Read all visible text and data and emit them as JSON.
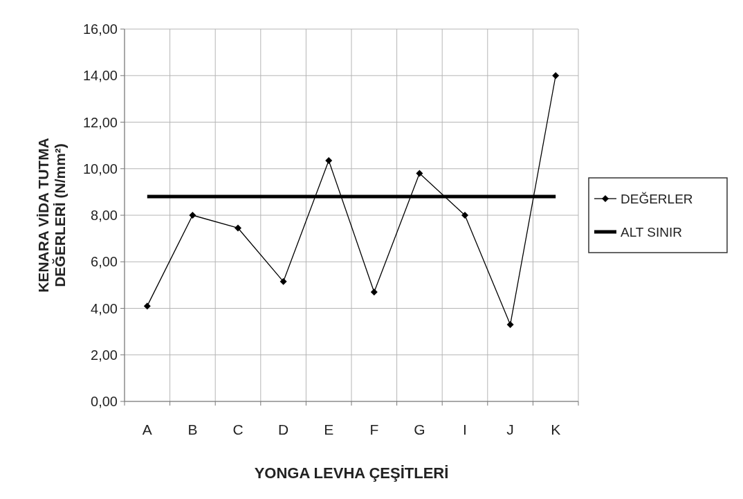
{
  "chart_data": {
    "type": "line",
    "xlabel": "YONGA LEVHA ÇEŞİTLERİ",
    "ylabel": "KENARA VİDA TUTMA DEĞERLERİ (N/mm²)",
    "categories": [
      "A",
      "B",
      "C",
      "D",
      "E",
      "F",
      "G",
      "I",
      "J",
      "K"
    ],
    "series": [
      {
        "name": "DEĞERLER",
        "color": "#000000",
        "marker": "diamond",
        "values": [
          4.1,
          8.0,
          7.45,
          5.15,
          10.35,
          4.7,
          9.8,
          8.0,
          3.3,
          14.0
        ]
      },
      {
        "name": "ALT SINIR",
        "color": "#000000",
        "marker": "none",
        "values": [
          8.8,
          8.8,
          8.8,
          8.8,
          8.8,
          8.8,
          8.8,
          8.8,
          8.8,
          8.8
        ]
      }
    ],
    "ylim": [
      0,
      16
    ],
    "yticks": [
      {
        "value": 0,
        "label": "0,00"
      },
      {
        "value": 2,
        "label": "2,00"
      },
      {
        "value": 4,
        "label": "4,00"
      },
      {
        "value": 6,
        "label": "6,00"
      },
      {
        "value": 8,
        "label": "8,00"
      },
      {
        "value": 10,
        "label": "10,00"
      },
      {
        "value": 12,
        "label": "12,00"
      },
      {
        "value": 14,
        "label": "14,00"
      },
      {
        "value": 16,
        "label": "16,00"
      }
    ],
    "grid": true,
    "legend": "right"
  }
}
